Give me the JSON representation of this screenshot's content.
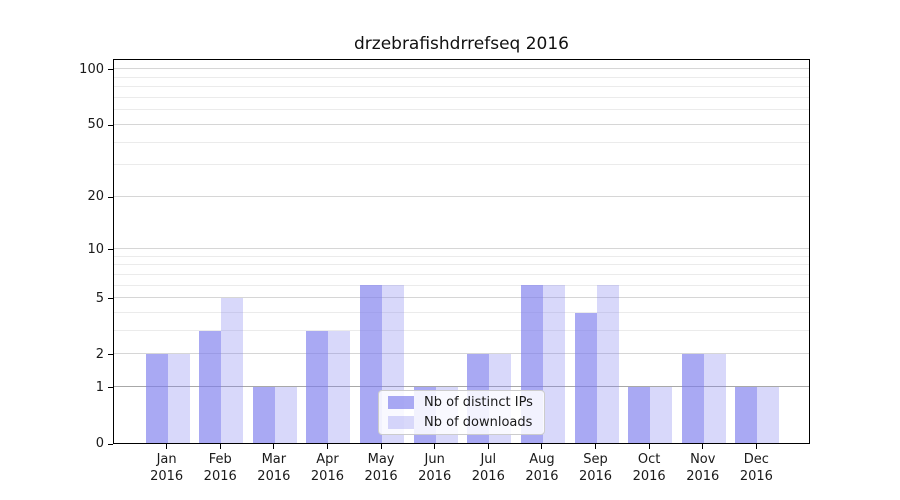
{
  "chart_data": {
    "type": "bar",
    "title": "drzebrafishdrrefseq 2016",
    "categories": [
      "Jan",
      "Feb",
      "Mar",
      "Apr",
      "May",
      "Jun",
      "Jul",
      "Aug",
      "Sep",
      "Oct",
      "Nov",
      "Dec"
    ],
    "category_year": "2016",
    "series": [
      {
        "name": "Nb of distinct IPs",
        "alpha": 0.66,
        "values": [
          2,
          3,
          1,
          3,
          6,
          1,
          2,
          6,
          4,
          1,
          2,
          1
        ]
      },
      {
        "name": "Nb of downloads",
        "alpha": 0.3,
        "values": [
          2,
          5,
          1,
          3,
          6,
          1,
          2,
          6,
          6,
          1,
          2,
          1
        ]
      }
    ],
    "xlabel": "",
    "ylabel": "",
    "yscale": "log1p",
    "ylim": [
      0,
      114.6
    ],
    "yticks": [
      0,
      1,
      2,
      5,
      10,
      20,
      50,
      100
    ],
    "minor_gridlines": [
      3,
      4,
      6,
      7,
      8,
      9,
      30,
      40,
      60,
      70,
      80,
      90
    ],
    "grid": true,
    "legend_position": "lower-center",
    "colors": {
      "bar_base": "#7d7ded",
      "bar_base_rgb": "125,125,237",
      "grid_major": "#d6d6d6",
      "grid_minor": "#ebebeb",
      "grid_level_one": "#a8a8a8",
      "axis": "#000000",
      "text": "#1a1a1a",
      "background": "#ffffff"
    }
  }
}
